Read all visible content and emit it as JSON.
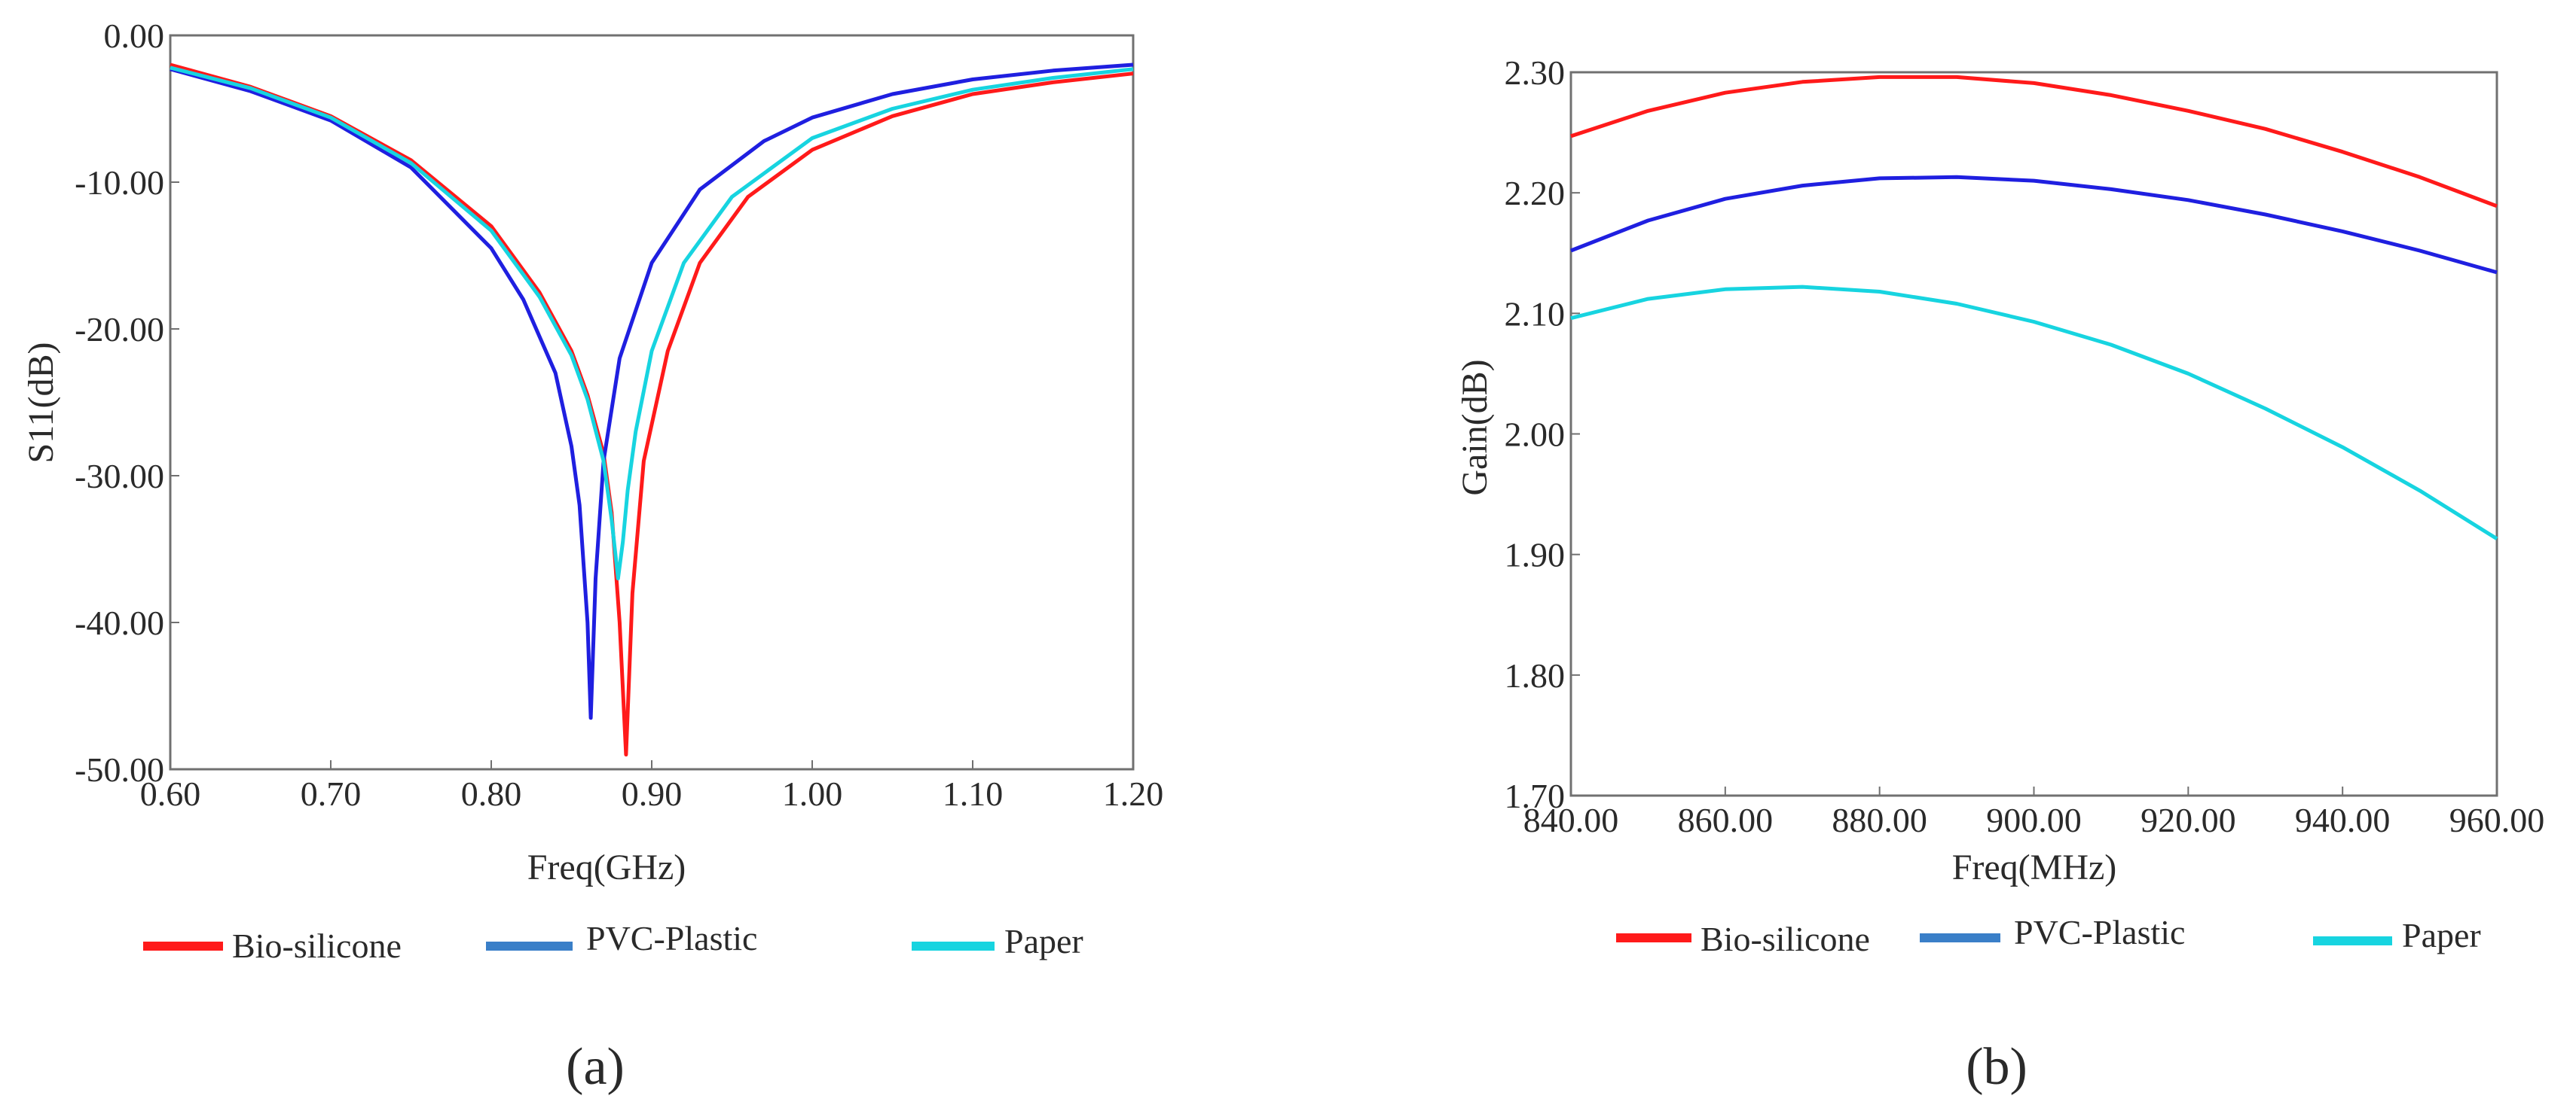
{
  "chart_data": [
    {
      "type": "line",
      "panel_label": "a",
      "xlabel": "Freq(GHz)",
      "ylabel": "S11(dB)",
      "xlim": [
        0.6,
        1.2
      ],
      "ylim": [
        -50,
        0
      ],
      "xticks": [
        0.6,
        0.7,
        0.8,
        0.9,
        1.0,
        1.1,
        1.2
      ],
      "yticks": [
        0,
        -10,
        -20,
        -30,
        -40,
        -50
      ],
      "xtick_labels": [
        "0.60",
        "0.70",
        "0.80",
        "0.90",
        "1.00",
        "1.10",
        "1.20"
      ],
      "ytick_labels": [
        "0.00",
        "-10.00",
        "-20.00",
        "-30.00",
        "-40.00",
        "-50.00"
      ],
      "series": [
        {
          "name": "Bio-silicone",
          "color": "#ff1a1a",
          "x": [
            0.6,
            0.65,
            0.7,
            0.75,
            0.8,
            0.83,
            0.85,
            0.86,
            0.87,
            0.875,
            0.88,
            0.884,
            0.888,
            0.895,
            0.91,
            0.93,
            0.96,
            1.0,
            1.05,
            1.1,
            1.15,
            1.2
          ],
          "y": [
            -2.0,
            -3.5,
            -5.5,
            -8.5,
            -13.0,
            -17.5,
            -21.5,
            -24.5,
            -28.5,
            -32.5,
            -40.0,
            -49.0,
            -38.0,
            -29.0,
            -21.5,
            -15.5,
            -11.0,
            -7.8,
            -5.5,
            -4.0,
            -3.2,
            -2.6
          ]
        },
        {
          "name": "PVC-Plastic",
          "color": "#1f1fe0",
          "x": [
            0.6,
            0.65,
            0.7,
            0.75,
            0.8,
            0.82,
            0.84,
            0.85,
            0.855,
            0.86,
            0.862,
            0.865,
            0.87,
            0.88,
            0.9,
            0.93,
            0.97,
            1.0,
            1.05,
            1.1,
            1.15,
            1.2
          ],
          "y": [
            -2.3,
            -3.8,
            -5.8,
            -9.0,
            -14.5,
            -18.0,
            -23.0,
            -28.0,
            -32.0,
            -40.0,
            -46.5,
            -37.0,
            -29.0,
            -22.0,
            -15.5,
            -10.5,
            -7.2,
            -5.6,
            -4.0,
            -3.0,
            -2.4,
            -2.0
          ]
        },
        {
          "name": "Paper",
          "color": "#17d4e0",
          "x": [
            0.6,
            0.65,
            0.7,
            0.75,
            0.8,
            0.83,
            0.85,
            0.86,
            0.87,
            0.875,
            0.879,
            0.882,
            0.885,
            0.89,
            0.9,
            0.92,
            0.95,
            1.0,
            1.05,
            1.1,
            1.15,
            1.2
          ],
          "y": [
            -2.2,
            -3.6,
            -5.6,
            -8.7,
            -13.3,
            -17.8,
            -21.8,
            -24.8,
            -29.0,
            -33.0,
            -37.0,
            -34.5,
            -31.0,
            -27.0,
            -21.5,
            -15.5,
            -11.0,
            -7.0,
            -5.0,
            -3.7,
            -2.9,
            -2.3
          ]
        }
      ]
    },
    {
      "type": "line",
      "panel_label": "b",
      "xlabel": "Freq(MHz)",
      "ylabel": "Gain(dB)",
      "xlim": [
        840,
        960
      ],
      "ylim": [
        1.7,
        2.3
      ],
      "xticks": [
        840,
        860,
        880,
        900,
        920,
        940,
        960
      ],
      "yticks": [
        2.3,
        2.2,
        2.1,
        2.0,
        1.9,
        1.8,
        1.7
      ],
      "xtick_labels": [
        "840.00",
        "860.00",
        "880.00",
        "900.00",
        "920.00",
        "940.00",
        "960.00"
      ],
      "ytick_labels": [
        "2.30",
        "2.20",
        "2.10",
        "2.00",
        "1.90",
        "1.80",
        "1.70"
      ],
      "series": [
        {
          "name": "Bio-silicone",
          "color": "#ff1a1a",
          "x": [
            840,
            850,
            860,
            870,
            880,
            890,
            900,
            910,
            920,
            930,
            940,
            950,
            960
          ],
          "y": [
            2.247,
            2.268,
            2.283,
            2.292,
            2.296,
            2.296,
            2.291,
            2.281,
            2.268,
            2.253,
            2.234,
            2.213,
            2.189
          ]
        },
        {
          "name": "PVC-Plastic",
          "color": "#1f1fe0",
          "x": [
            840,
            850,
            860,
            870,
            880,
            890,
            900,
            910,
            920,
            930,
            940,
            950,
            960
          ],
          "y": [
            2.152,
            2.177,
            2.195,
            2.206,
            2.212,
            2.213,
            2.21,
            2.203,
            2.194,
            2.182,
            2.168,
            2.152,
            2.134
          ]
        },
        {
          "name": "Paper",
          "color": "#17d4e0",
          "x": [
            840,
            850,
            860,
            870,
            880,
            890,
            900,
            910,
            920,
            930,
            940,
            950,
            960
          ],
          "y": [
            2.096,
            2.112,
            2.12,
            2.122,
            2.118,
            2.108,
            2.093,
            2.074,
            2.05,
            2.021,
            1.989,
            1.953,
            1.913
          ]
        }
      ]
    }
  ],
  "legend": {
    "items": [
      {
        "name": "Bio-silicone",
        "color": "#ff1a1a"
      },
      {
        "name": "PVC-Plastic",
        "color": "#3a7fc8"
      },
      {
        "name": "Paper",
        "color": "#17d4e0"
      }
    ]
  },
  "captions": {
    "a": "(a)",
    "b": "(b)"
  }
}
